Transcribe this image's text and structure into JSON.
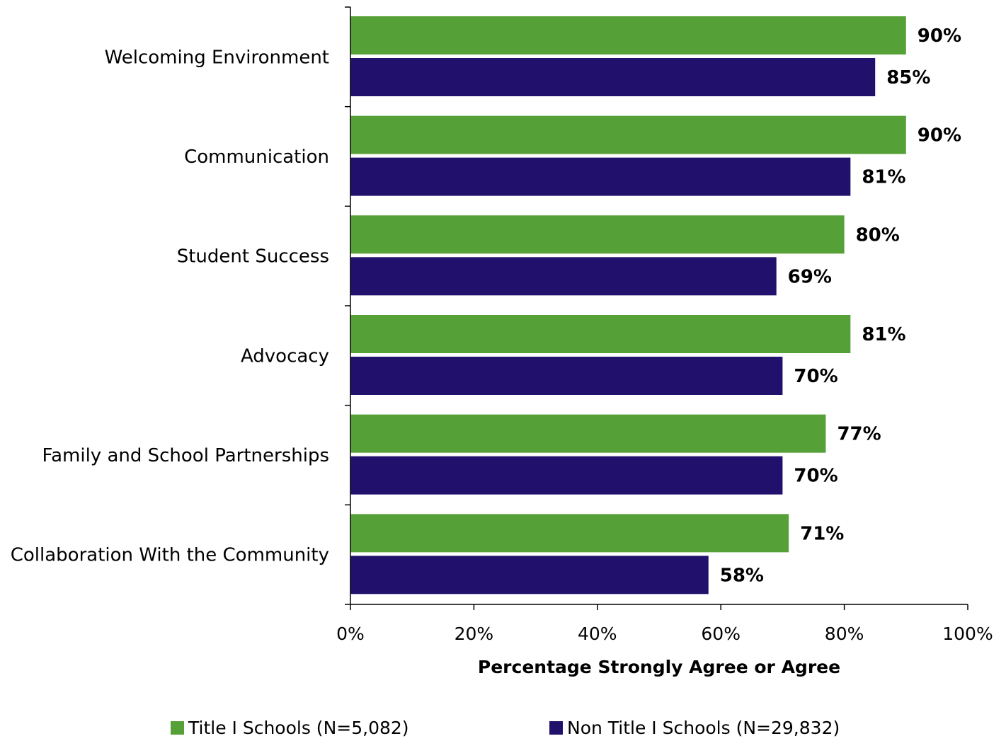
{
  "chart_data": {
    "type": "bar",
    "orientation": "horizontal",
    "categories": [
      "Welcoming Environment",
      "Communication",
      "Student Success",
      "Advocacy",
      "Family and School Partnerships",
      "Collaboration With the Community"
    ],
    "series": [
      {
        "name": "Title I Schools (N=5,082)",
        "color": "#56A137",
        "values": [
          90,
          90,
          80,
          81,
          77,
          71
        ],
        "labels": [
          "90%",
          "90%",
          "80%",
          "81%",
          "77%",
          "71%"
        ]
      },
      {
        "name": "Non Title I Schools (N=29,832)",
        "color": "#22106D",
        "values": [
          85,
          81,
          69,
          70,
          70,
          58
        ],
        "labels": [
          "85%",
          "81%",
          "69%",
          "70%",
          "70%",
          "58%"
        ]
      }
    ],
    "xlabel": "Percentage Strongly Agree or Agree",
    "ylabel": "",
    "xlim": [
      0,
      100
    ],
    "xticks": [
      0,
      20,
      40,
      60,
      80,
      100
    ],
    "xtick_labels": [
      "0%",
      "20%",
      "40%",
      "60%",
      "80%",
      "100%"
    ],
    "grid": false,
    "legend_position": "bottom"
  }
}
